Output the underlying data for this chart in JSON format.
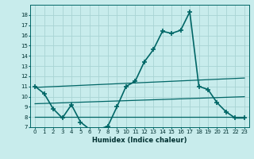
{
  "x": [
    0,
    1,
    2,
    3,
    4,
    5,
    6,
    7,
    8,
    9,
    10,
    11,
    12,
    13,
    14,
    15,
    16,
    17,
    18,
    19,
    20,
    21,
    22,
    23
  ],
  "humidex": [
    11.0,
    10.3,
    8.8,
    7.9,
    9.2,
    7.5,
    6.8,
    6.8,
    7.1,
    9.0,
    11.0,
    11.5,
    13.4,
    14.6,
    16.4,
    16.2,
    16.5,
    18.3,
    11.0,
    10.7,
    9.4,
    8.5,
    7.9,
    7.9
  ],
  "trend_lower": [
    9.3,
    9.33,
    9.36,
    9.39,
    9.42,
    9.45,
    9.48,
    9.51,
    9.54,
    9.57,
    9.6,
    9.63,
    9.66,
    9.69,
    9.72,
    9.75,
    9.78,
    9.81,
    9.84,
    9.87,
    9.9,
    9.93,
    9.96,
    9.99
  ],
  "trend_upper": [
    10.9,
    10.94,
    10.98,
    11.02,
    11.06,
    11.1,
    11.14,
    11.18,
    11.22,
    11.26,
    11.3,
    11.34,
    11.38,
    11.42,
    11.46,
    11.5,
    11.54,
    11.58,
    11.62,
    11.66,
    11.7,
    11.74,
    11.78,
    11.82
  ],
  "flat_line": [
    8.0,
    8.0,
    8.0,
    8.0,
    8.0,
    8.0,
    8.0,
    8.0,
    8.0,
    8.0,
    8.0,
    8.0,
    8.0,
    8.0,
    8.0,
    8.0,
    8.0,
    8.0,
    8.0,
    8.0,
    8.0,
    8.0,
    8.0,
    8.0
  ],
  "line_color": "#006666",
  "bg_color": "#c8ecec",
  "grid_color": "#a8d4d4",
  "xlabel": "Humidex (Indice chaleur)",
  "ylim": [
    7,
    19
  ],
  "xlim": [
    -0.5,
    23.5
  ],
  "yticks": [
    7,
    8,
    9,
    10,
    11,
    12,
    13,
    14,
    15,
    16,
    17,
    18
  ],
  "xticks": [
    0,
    1,
    2,
    3,
    4,
    5,
    6,
    7,
    8,
    9,
    10,
    11,
    12,
    13,
    14,
    15,
    16,
    17,
    18,
    19,
    20,
    21,
    22,
    23
  ],
  "tick_fontsize": 5.0,
  "xlabel_fontsize": 6.0
}
